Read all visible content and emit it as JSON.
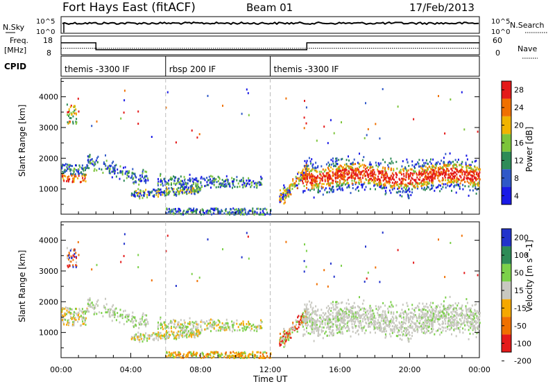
{
  "header": {
    "station": "Fort Hays East (fitACF)",
    "beam": "Beam 01",
    "date": "17/Feb/2013"
  },
  "strip_labels": {
    "nsky": "N.Sky",
    "nsky_ticks": [
      "10^5",
      "10^0"
    ],
    "nsearch": "N.Search",
    "nsearch_ticks": [
      "10^5",
      "10^0"
    ],
    "freq_top": "Freq.",
    "freq_bottom": "[MHz]",
    "freq_ticks": [
      "18",
      "8"
    ],
    "nave": "Nave",
    "nave_ticks": [
      "60",
      "0"
    ],
    "cpid": "CPID"
  },
  "cpid_segments": [
    {
      "label": "themis -3300 IF",
      "start_h": 0,
      "end_h": 6
    },
    {
      "label": "rbsp 200 IF",
      "start_h": 6,
      "end_h": 12
    },
    {
      "label": "themis -3300 IF",
      "start_h": 12,
      "end_h": 24
    }
  ],
  "chart_data": [
    {
      "type": "line",
      "name": "frequency",
      "ylabel": "Freq. [MHz]",
      "ylim": [
        8,
        18
      ],
      "x_hours": [
        0,
        2,
        2,
        14.1,
        14.1,
        24
      ],
      "y_mhz": [
        14.5,
        14.5,
        10.5,
        10.5,
        14.5,
        14.5
      ]
    },
    {
      "type": "line",
      "name": "nave",
      "ylabel": "Nave",
      "ylim": [
        0,
        60
      ],
      "x_hours": [
        0,
        24
      ],
      "y": [
        20,
        20
      ]
    },
    {
      "type": "heatmap",
      "name": "power",
      "ylabel": "Slant Range [km]",
      "xlabel": "Time UT",
      "xlim_hours": [
        0,
        24
      ],
      "ylim_km": [
        180,
        4600
      ],
      "colorbar_label": "Power [dB]",
      "colorbar_ticks": [
        "4",
        "8",
        "12",
        "16",
        "20",
        "24",
        "28"
      ],
      "colors": [
        "#1a1ae6",
        "#2f58c8",
        "#2e8b57",
        "#7cc43a",
        "#f0b400",
        "#f07000",
        "#e41a1a"
      ]
    },
    {
      "type": "heatmap",
      "name": "velocity",
      "ylabel": "Slant Range [km]",
      "xlabel": "Time UT",
      "xlim_hours": [
        0,
        24
      ],
      "ylim_km": [
        180,
        4600
      ],
      "colorbar_label": "Velocity [m s^-1]",
      "colorbar_ticks": [
        "200",
        "100",
        "50",
        "15",
        "-15",
        "-50",
        "-100",
        "-200"
      ],
      "colors": [
        "#2233cc",
        "#2e8b57",
        "#7cd04a",
        "#c8c8c0",
        "#f5a800",
        "#f07000",
        "#e41a1a"
      ]
    }
  ],
  "axes": {
    "y_ticks_km": [
      "4000",
      "3000",
      "2000",
      "1000"
    ],
    "x_ticks": [
      "00:00",
      "04:00",
      "08:00",
      "12:00",
      "16:00",
      "20:00",
      "00:00"
    ],
    "xlabel": "Time UT",
    "ylabel": "Slant Range [km]"
  }
}
